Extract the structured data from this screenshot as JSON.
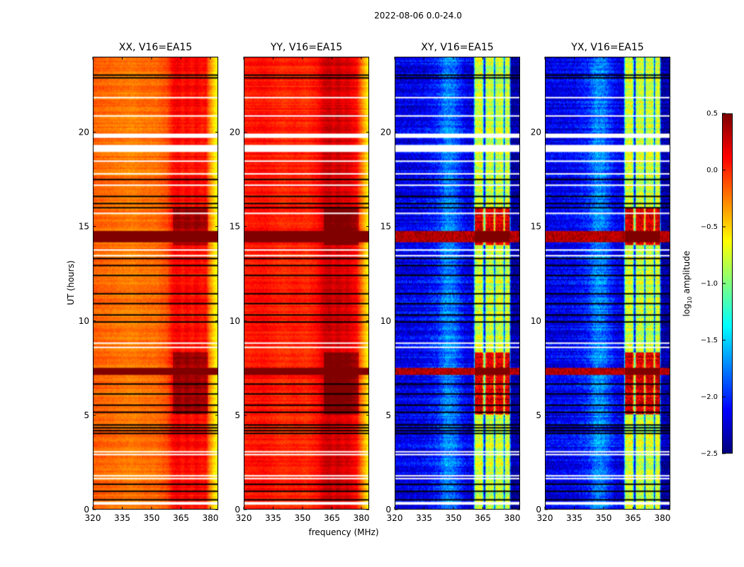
{
  "chart_data": {
    "type": "heatmap",
    "title": "2022-08-06 0.0-24.0",
    "xlabel": "frequency (MHz)",
    "ylabel": "UT (hours)",
    "xlim": [
      320,
      384
    ],
    "ylim": [
      0,
      24
    ],
    "xticks": [
      320,
      335,
      350,
      365,
      380
    ],
    "yticks": [
      0,
      5,
      10,
      15,
      20
    ],
    "grid": false,
    "colorbar": {
      "label_prefix": "log",
      "label_sub": "10",
      "label_suffix": " amplitude",
      "colormap": "jet",
      "range": [
        -2.5,
        0.5
      ],
      "ticks": [
        0.5,
        0.0,
        -0.5,
        -1.0,
        -1.5,
        -2.0,
        -2.5
      ],
      "tick_labels": [
        "0.5",
        "0.0",
        "−0.5",
        "−1.0",
        "−1.5",
        "−2.0",
        "−2.5"
      ]
    },
    "flags": {
      "blank_hours": [
        [
          0.25,
          0.38
        ],
        [
          1.55,
          1.62
        ],
        [
          1.72,
          1.78
        ],
        [
          2.82,
          2.9
        ],
        [
          2.98,
          3.05
        ],
        [
          8.55,
          8.62
        ],
        [
          8.8,
          8.86
        ],
        [
          13.45,
          13.52
        ],
        [
          13.75,
          13.82
        ],
        [
          14.0,
          14.06
        ],
        [
          15.7,
          15.76
        ],
        [
          17.15,
          17.22
        ],
        [
          17.75,
          17.82
        ],
        [
          18.45,
          18.5
        ],
        [
          19.0,
          19.35
        ],
        [
          19.7,
          19.92
        ],
        [
          20.85,
          20.92
        ],
        [
          21.85,
          21.9
        ],
        [
          22.25,
          22.3
        ]
      ],
      "dark_hours": [
        [
          0.45,
          0.5
        ],
        [
          0.9,
          0.95
        ],
        [
          1.3,
          1.35
        ],
        [
          4.0,
          4.05
        ],
        [
          4.15,
          4.2
        ],
        [
          4.3,
          4.35
        ],
        [
          4.45,
          4.5
        ],
        [
          5.1,
          5.15
        ],
        [
          5.5,
          5.55
        ],
        [
          6.1,
          6.15
        ],
        [
          6.6,
          6.65
        ],
        [
          9.5,
          9.56
        ],
        [
          9.9,
          9.95
        ],
        [
          10.3,
          10.36
        ],
        [
          10.9,
          10.95
        ],
        [
          11.4,
          11.46
        ],
        [
          11.9,
          11.95
        ],
        [
          12.4,
          12.46
        ],
        [
          12.9,
          12.95
        ],
        [
          13.3,
          13.36
        ],
        [
          16.0,
          16.05
        ],
        [
          16.2,
          16.25
        ],
        [
          16.4,
          16.45
        ],
        [
          16.55,
          16.62
        ],
        [
          17.5,
          17.55
        ],
        [
          18.8,
          18.85
        ],
        [
          22.85,
          22.92
        ],
        [
          23.05,
          23.12
        ]
      ],
      "rfi_hours": [
        [
          7.1,
          7.5
        ],
        [
          14.2,
          14.8
        ]
      ],
      "band_active_hours": [
        [
          5.0,
          8.3
        ],
        [
          14.0,
          16.0
        ]
      ]
    },
    "panels": [
      {
        "title": "XX, V16=EA15",
        "freq_mhz": [
          320,
          330,
          340,
          346,
          352,
          358,
          361,
          364,
          366,
          368,
          371,
          373,
          376,
          378,
          379.5,
          382,
          384
        ],
        "log_amplitude": [
          -0.15,
          -0.2,
          -0.25,
          -0.2,
          -0.2,
          -0.1,
          0.1,
          0.15,
          0.05,
          0.15,
          0.05,
          0.15,
          0.05,
          0.1,
          -0.2,
          -0.5,
          -0.7
        ]
      },
      {
        "title": "YY, V16=EA15",
        "freq_mhz": [
          320,
          330,
          340,
          346,
          352,
          358,
          361,
          364,
          366,
          368,
          371,
          373,
          376,
          378,
          379.5,
          382,
          384
        ],
        "log_amplitude": [
          0.05,
          0.1,
          0.0,
          0.05,
          0.0,
          0.1,
          0.25,
          0.3,
          0.2,
          0.3,
          0.2,
          0.25,
          0.15,
          0.1,
          -0.1,
          -0.4,
          -0.6
        ]
      },
      {
        "title": "XY, V16=EA15",
        "freq_mhz": [
          320,
          335,
          342,
          346,
          350,
          356,
          360.5,
          361,
          365,
          365.6,
          366.4,
          366.8,
          370.6,
          371,
          371.4,
          371.8,
          375.6,
          376,
          376.4,
          376.8,
          379,
          379.4,
          384
        ],
        "log_amplitude": [
          -2.2,
          -2.15,
          -2.0,
          -1.7,
          -1.75,
          -2.15,
          -2.2,
          -0.8,
          -0.7,
          -2.0,
          -2.0,
          -0.8,
          -0.75,
          -1.9,
          -1.9,
          -0.8,
          -0.75,
          -1.9,
          -1.9,
          -0.8,
          -0.7,
          -2.4,
          -2.4
        ]
      },
      {
        "title": "YX, V16=EA15",
        "freq_mhz": [
          320,
          335,
          342,
          346,
          350,
          356,
          360.5,
          361,
          365,
          365.6,
          366.4,
          366.8,
          370.6,
          371,
          371.4,
          371.8,
          375.6,
          376,
          376.4,
          376.8,
          379,
          379.4,
          384
        ],
        "log_amplitude": [
          -2.2,
          -2.15,
          -2.0,
          -1.7,
          -1.75,
          -2.15,
          -2.2,
          -0.8,
          -0.7,
          -2.0,
          -2.0,
          -0.8,
          -0.75,
          -1.9,
          -1.9,
          -0.8,
          -0.75,
          -1.9,
          -1.9,
          -0.8,
          -0.7,
          -2.4,
          -2.4
        ]
      }
    ]
  }
}
